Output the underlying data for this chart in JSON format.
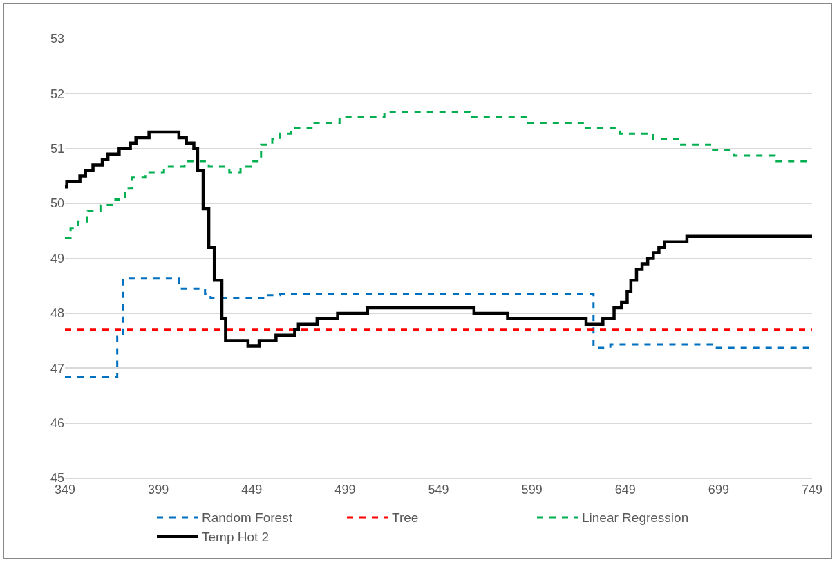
{
  "chart_data": {
    "type": "line",
    "xlim": [
      349,
      749
    ],
    "xticks": [
      349,
      399,
      449,
      499,
      549,
      599,
      649,
      699,
      749
    ],
    "ylim": [
      45,
      53
    ],
    "yticks": [
      45,
      46,
      47,
      48,
      49,
      50,
      51,
      52,
      53
    ],
    "grid": "y",
    "legend": "bottom",
    "marker": "none",
    "series": [
      {
        "name": "Random Forest",
        "type": "step",
        "color": "#0070c0",
        "line_style": "dashed",
        "x": [
          349,
          377,
          380,
          410,
          424,
          427,
          457,
          464,
          632,
          641,
          696,
          749
        ],
        "values": [
          46.84,
          47.57,
          48.63,
          48.45,
          48.35,
          48.27,
          48.33,
          48.35,
          47.37,
          47.43,
          47.37,
          47.37
        ]
      },
      {
        "name": "Tree",
        "type": "line",
        "color": "#ff0000",
        "line_style": "dashed",
        "x": [
          349,
          749
        ],
        "values": [
          47.7,
          47.7
        ]
      },
      {
        "name": "Linear Regression",
        "type": "step",
        "color": "#00b050",
        "line_style": "dashed",
        "x": [
          349,
          352,
          356,
          361,
          368,
          376,
          381,
          385,
          392,
          402,
          413,
          426,
          437,
          443,
          449,
          454,
          460,
          464,
          470,
          481,
          496,
          520,
          566,
          597,
          627,
          646,
          664,
          678,
          696,
          707,
          729,
          749
        ],
        "values": [
          49.37,
          49.55,
          49.67,
          49.87,
          49.97,
          50.07,
          50.27,
          50.47,
          50.57,
          50.67,
          50.77,
          50.67,
          50.57,
          50.67,
          50.77,
          51.07,
          51.17,
          51.27,
          51.37,
          51.47,
          51.57,
          51.67,
          51.57,
          51.47,
          51.37,
          51.27,
          51.17,
          51.07,
          50.97,
          50.87,
          50.77,
          50.77
        ]
      },
      {
        "name": "Temp Hot 2",
        "type": "step",
        "color": "#000000",
        "line_style": "solid",
        "x": [
          349,
          350,
          357,
          360,
          364,
          369,
          372,
          378,
          384,
          387,
          394,
          410,
          414,
          418,
          420,
          423,
          426,
          429,
          433,
          435,
          447,
          453,
          462,
          472,
          474,
          484,
          495,
          511,
          568,
          586,
          628,
          637,
          643,
          647,
          650,
          652,
          655,
          658,
          661,
          664,
          667,
          670,
          682,
          749
        ],
        "values": [
          50.3,
          50.4,
          50.5,
          50.6,
          50.7,
          50.8,
          50.9,
          51.0,
          51.1,
          51.2,
          51.3,
          51.2,
          51.1,
          51.0,
          50.6,
          49.9,
          49.2,
          48.6,
          47.9,
          47.5,
          47.4,
          47.5,
          47.6,
          47.7,
          47.8,
          47.9,
          48.0,
          48.1,
          48.0,
          47.9,
          47.8,
          47.9,
          48.1,
          48.2,
          48.4,
          48.6,
          48.8,
          48.9,
          49.0,
          49.1,
          49.2,
          49.3,
          49.4,
          49.4
        ]
      }
    ]
  }
}
